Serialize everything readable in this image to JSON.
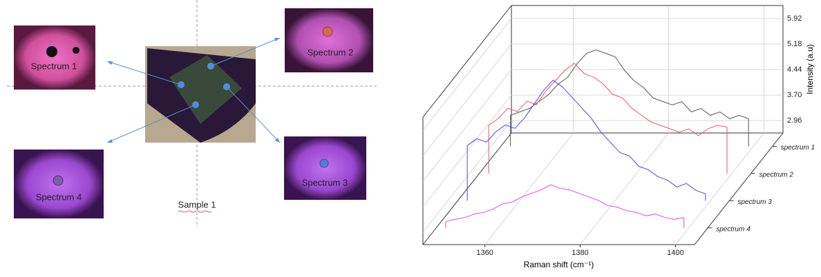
{
  "diagram": {
    "labels": [
      "Spectrum 1",
      "Spectrum 2",
      "Spectrum 3",
      "Spectrum 4"
    ],
    "sample": "Sample 1"
  },
  "chart_data": {
    "type": "waterfall",
    "xlabel": "Raman shift (cm⁻¹)",
    "ylabel": "Intensity (a.u)",
    "x": [
      1349,
      1351,
      1353,
      1355,
      1357,
      1359,
      1361,
      1363,
      1365,
      1367,
      1369,
      1371,
      1373,
      1375,
      1377,
      1379,
      1381,
      1383,
      1385,
      1387,
      1389,
      1391,
      1393,
      1395,
      1397,
      1399
    ],
    "xlim": [
      1347,
      1404
    ],
    "xticks": [
      1360,
      1380,
      1400
    ],
    "ylim": [
      2.6,
      6.3
    ],
    "yticks": [
      2.96,
      {
        "value": 3.7,
        "label": "3.70"
      },
      4.44,
      5.18,
      5.92
    ],
    "grid": true,
    "series": [
      {
        "name": "spectrum 1",
        "color": "#555555",
        "values": [
          3.5,
          3.6,
          3.7,
          3.9,
          4.1,
          4.4,
          4.6,
          5.0,
          5.3,
          5.4,
          5.3,
          5.2,
          4.8,
          4.5,
          4.3,
          4.0,
          3.9,
          3.8,
          3.9,
          3.6,
          3.7,
          3.5,
          3.6,
          3.4,
          3.5,
          3.4
        ]
      },
      {
        "name": "spectrum 2",
        "color": "#e05a5a",
        "values": [
          4.0,
          4.2,
          4.5,
          4.4,
          4.7,
          4.6,
          5.0,
          5.3,
          5.6,
          5.8,
          5.5,
          5.4,
          5.2,
          4.9,
          4.8,
          4.5,
          4.3,
          4.1,
          4.0,
          3.9,
          3.8,
          3.9,
          3.7,
          3.9,
          4.0,
          3.95
        ]
      },
      {
        "name": "spectrum 3",
        "color": "#4b4bd0",
        "values": [
          4.2,
          4.4,
          4.3,
          4.6,
          4.8,
          4.7,
          5.0,
          5.4,
          5.8,
          6.1,
          5.9,
          5.6,
          5.3,
          5.0,
          4.6,
          4.3,
          4.0,
          3.9,
          3.6,
          3.5,
          3.3,
          3.2,
          3.0,
          3.1,
          2.9,
          2.8
        ]
      },
      {
        "name": "spectrum 4",
        "color": "#e040e0",
        "values": [
          2.78,
          2.85,
          2.9,
          3.0,
          3.05,
          3.15,
          3.3,
          3.35,
          3.5,
          3.6,
          3.7,
          3.85,
          3.75,
          3.7,
          3.6,
          3.5,
          3.4,
          3.25,
          3.2,
          3.1,
          3.05,
          2.95,
          3.0,
          2.9,
          2.85,
          2.9
        ]
      }
    ]
  }
}
